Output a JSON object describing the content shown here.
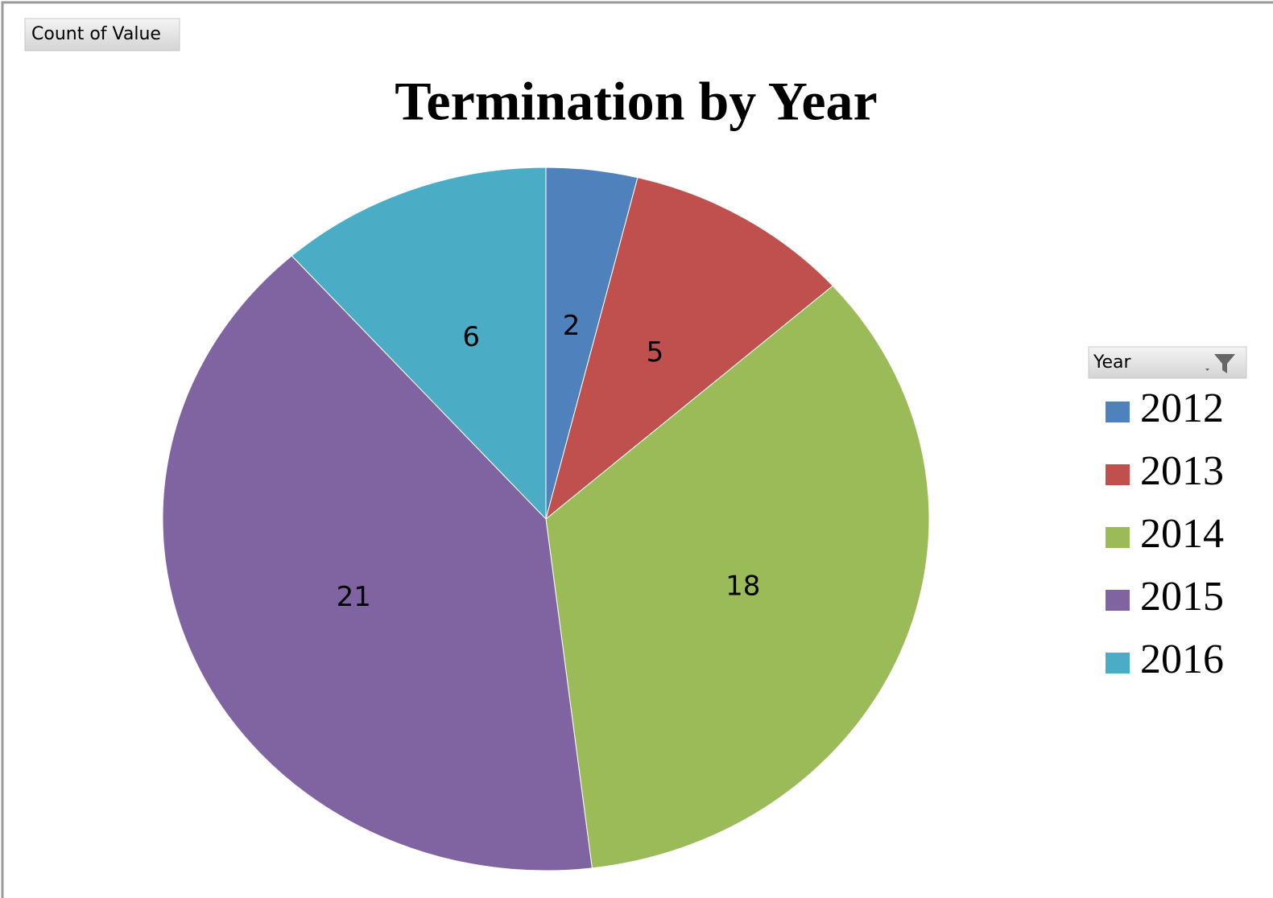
{
  "chart_data": {
    "type": "pie",
    "title": "Termination by Year",
    "value_field_button": "Count of Value",
    "legend_title": "Year",
    "categories": [
      "2012",
      "2013",
      "2014",
      "2015",
      "2016"
    ],
    "values": [
      2,
      5,
      18,
      21,
      6
    ],
    "colors": [
      "#4f81bd",
      "#c0504d",
      "#9bbb59",
      "#8064a2",
      "#4bacc6"
    ],
    "legend": "right"
  }
}
